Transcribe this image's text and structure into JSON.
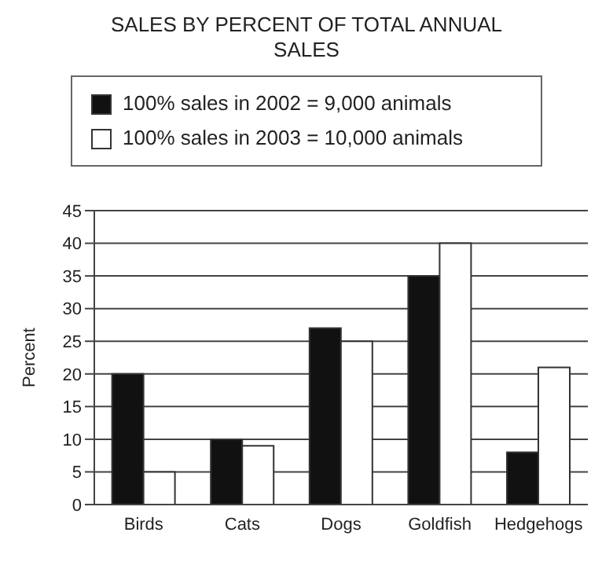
{
  "chart_data": {
    "type": "bar",
    "title": "SALES BY PERCENT OF TOTAL ANNUAL SALES",
    "ylabel": "Percent",
    "categories": [
      "Birds",
      "Cats",
      "Dogs",
      "Goldfish",
      "Hedgehogs"
    ],
    "series": [
      {
        "name": "100% sales in 2002 = 9,000 animals",
        "color": "#111111",
        "values": [
          20,
          10,
          27,
          35,
          8
        ]
      },
      {
        "name": "100% sales in 2003 = 10,000 animals",
        "color": "#ffffff",
        "values": [
          5,
          9,
          25,
          40,
          21
        ]
      }
    ],
    "ylim": [
      0,
      45
    ],
    "yticks": [
      0,
      5,
      10,
      15,
      20,
      25,
      30,
      35,
      40,
      45
    ],
    "grid": "y",
    "legend": "top"
  }
}
